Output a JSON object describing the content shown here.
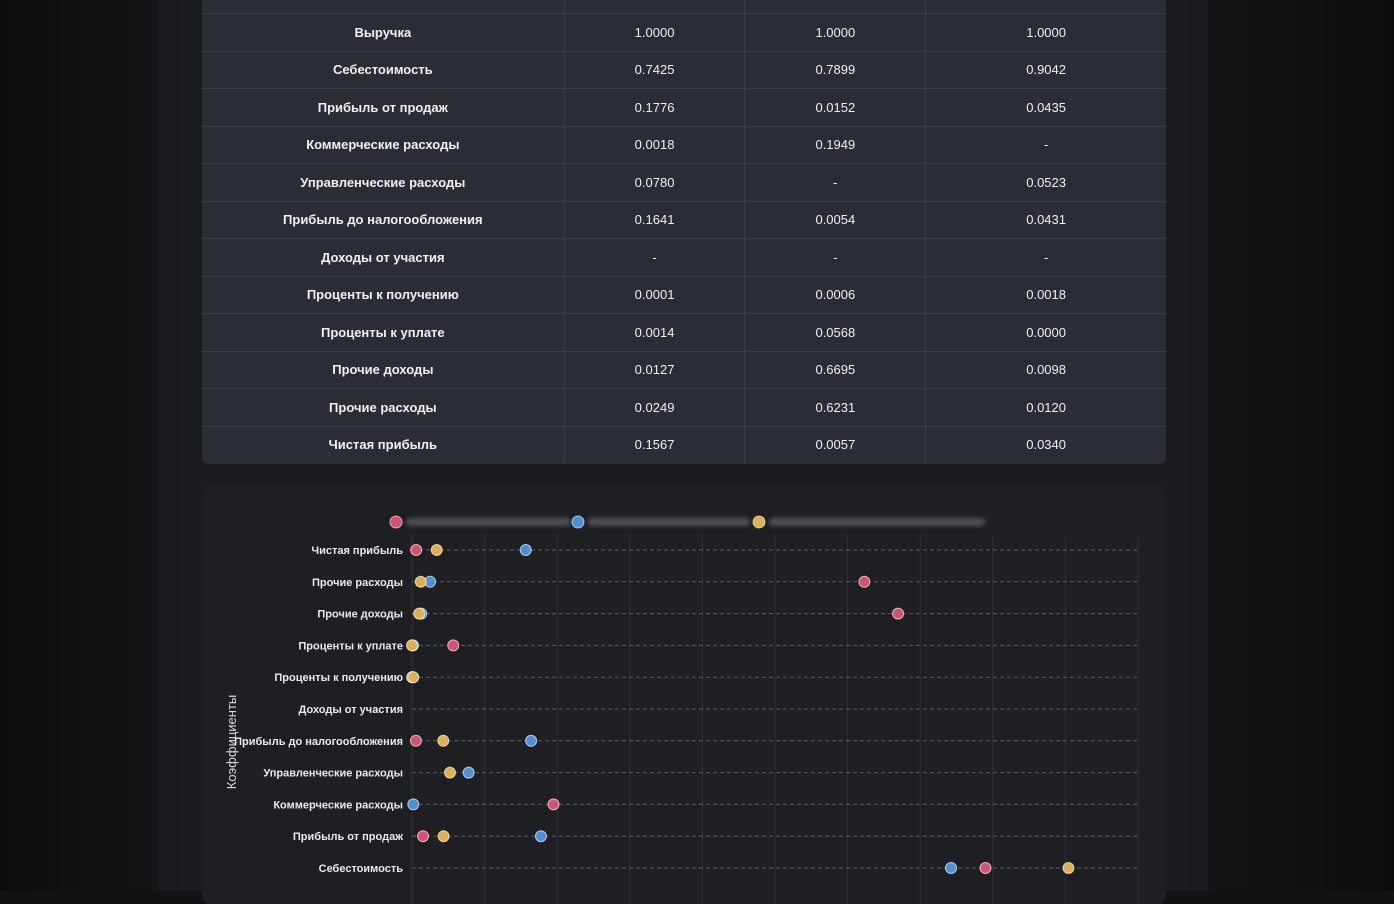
{
  "table": {
    "rows": [
      {
        "name": "Выручка",
        "values": [
          "1.0000",
          "1.0000",
          "1.0000"
        ]
      },
      {
        "name": "Себестоимость",
        "values": [
          "0.7425",
          "0.7899",
          "0.9042"
        ]
      },
      {
        "name": "Прибыль от продаж",
        "values": [
          "0.1776",
          "0.0152",
          "0.0435"
        ]
      },
      {
        "name": "Коммерческие расходы",
        "values": [
          "0.0018",
          "0.1949",
          "-"
        ]
      },
      {
        "name": "Управленческие расходы",
        "values": [
          "0.0780",
          "-",
          "0.0523"
        ]
      },
      {
        "name": "Прибыль до налогообложения",
        "values": [
          "0.1641",
          "0.0054",
          "0.0431"
        ]
      },
      {
        "name": "Доходы от участия",
        "values": [
          "-",
          "-",
          "-"
        ]
      },
      {
        "name": "Проценты к получению",
        "values": [
          "0.0001",
          "0.0006",
          "0.0018"
        ]
      },
      {
        "name": "Проценты к уплате",
        "values": [
          "0.0014",
          "0.0568",
          "0.0000"
        ]
      },
      {
        "name": "Прочие доходы",
        "values": [
          "0.0127",
          "0.6695",
          "0.0098"
        ]
      },
      {
        "name": "Прочие расходы",
        "values": [
          "0.0249",
          "0.6231",
          "0.0120"
        ]
      },
      {
        "name": "Чистая прибыль",
        "values": [
          "0.1567",
          "0.0057",
          "0.0340"
        ]
      }
    ]
  },
  "chart_data": {
    "type": "scatter",
    "ylabel": "Коэффициенты",
    "xlabel": "",
    "xlim": [
      0,
      1
    ],
    "grid": true,
    "legend_placement": "top",
    "categories": [
      "Чистая прибыль",
      "Прочие расходы",
      "Прочие доходы",
      "Проценты к уплате",
      "Проценты к получению",
      "Доходы от участия",
      "Прибыль до налогообложения",
      "Управленческие расходы",
      "Коммерческие расходы",
      "Прибыль от продаж",
      "Себестоимость"
    ],
    "series": [
      {
        "color": "#d9506e",
        "values": [
          0.0057,
          0.6231,
          0.6695,
          0.0568,
          0.0006,
          null,
          0.0054,
          null,
          0.1949,
          0.0152,
          0.7899
        ]
      },
      {
        "color": "#4a90d9",
        "values": [
          0.1567,
          0.0249,
          0.0127,
          0.0014,
          0.0001,
          null,
          0.1641,
          0.078,
          0.0018,
          0.1776,
          0.7425
        ]
      },
      {
        "color": "#e0b04a",
        "values": [
          0.034,
          0.012,
          0.0098,
          0.0,
          0.0018,
          null,
          0.0431,
          0.0523,
          null,
          0.0435,
          0.9042
        ]
      }
    ]
  }
}
